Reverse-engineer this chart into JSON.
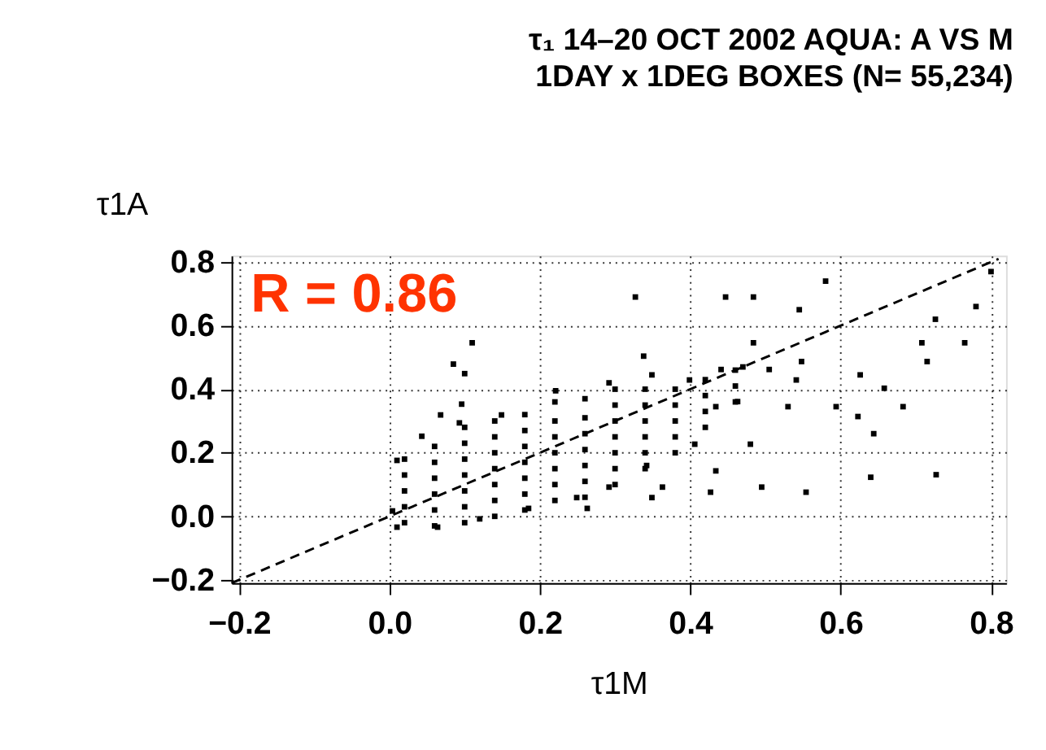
{
  "chart_data": {
    "type": "scatter",
    "title": "τ₁ 14–20 OCT 2002 AQUA: A VS M",
    "subtitle": "1DAY x 1DEG BOXES (N= 55,234)",
    "xlabel": "τ1M",
    "ylabel": "τ1A",
    "xlim": [
      -0.21,
      0.82
    ],
    "ylim": [
      -0.21,
      0.82
    ],
    "xticks": [
      -0.2,
      {
        "value": 0,
        "label": "0.0"
      },
      0.2,
      0.4,
      0.6,
      0.8
    ],
    "yticks": [
      -0.2,
      {
        "value": 0,
        "label": "0.0"
      },
      0.2,
      0.4,
      0.6,
      0.8
    ],
    "grid": true,
    "annotations": [
      "R = 0.86"
    ],
    "series": [
      {
        "color": "#000000",
        "marker": "square",
        "x": [
          0.02,
          0.02,
          0.02,
          0.02,
          0.02,
          0.06,
          0.06,
          0.06,
          0.06,
          0.06,
          0.06,
          0.1,
          0.1,
          0.1,
          0.1,
          0.1,
          0.1,
          0.1,
          0.14,
          0.14,
          0.14,
          0.14,
          0.14,
          0.14,
          0.14,
          0.18,
          0.18,
          0.18,
          0.18,
          0.18,
          0.18,
          0.18,
          0.22,
          0.22,
          0.22,
          0.22,
          0.22,
          0.22,
          0.22,
          0.26,
          0.26,
          0.26,
          0.26,
          0.26,
          0.26,
          0.26,
          0.3,
          0.3,
          0.3,
          0.3,
          0.3,
          0.3,
          0.3,
          0.34,
          0.34,
          0.34,
          0.34,
          0.34,
          0.34,
          0.38,
          0.38,
          0.38,
          0.38,
          0.38,
          0.42,
          0.42,
          0.42,
          0.42,
          0.46,
          0.46,
          0.46,
          0.004,
          0.01,
          0.064,
          0.12,
          0.185,
          0.249,
          0.263,
          0.292,
          0.342,
          0.406,
          0.01,
          0.043,
          0.093,
          0.149,
          0.221,
          0.292,
          0.349,
          0.399,
          0.441,
          0.47,
          0.434,
          0.327,
          0.447,
          0.484,
          0.545,
          0.58,
          0.78,
          0.8,
          0.726,
          0.708,
          0.765,
          0.715,
          0.594,
          0.623,
          0.644,
          0.64,
          0.727,
          0.554,
          0.495,
          0.427,
          0.434,
          0.48,
          0.085,
          0.1,
          0.11,
          0.068,
          0.096,
          0.338,
          0.484,
          0.541,
          0.53,
          0.683,
          0.658,
          0.626,
          0.548,
          0.505,
          0.349,
          0.363,
          0.463
        ],
        "values": [
          -0.02,
          0.03,
          0.08,
          0.13,
          0.18,
          -0.03,
          0.02,
          0.07,
          0.12,
          0.17,
          0.22,
          -0.02,
          0.03,
          0.08,
          0.13,
          0.18,
          0.23,
          0.28,
          0.0,
          0.05,
          0.1,
          0.15,
          0.2,
          0.25,
          0.3,
          0.02,
          0.07,
          0.12,
          0.17,
          0.22,
          0.27,
          0.32,
          0.05,
          0.1,
          0.15,
          0.2,
          0.25,
          0.3,
          0.36,
          0.06,
          0.11,
          0.16,
          0.21,
          0.26,
          0.31,
          0.37,
          0.1,
          0.15,
          0.2,
          0.25,
          0.3,
          0.35,
          0.4,
          0.15,
          0.2,
          0.25,
          0.3,
          0.35,
          0.4,
          0.2,
          0.25,
          0.3,
          0.35,
          0.4,
          0.28,
          0.33,
          0.38,
          0.43,
          0.36,
          0.41,
          0.46,
          0.017,
          -0.034,
          -0.034,
          -0.008,
          0.025,
          0.059,
          0.025,
          0.092,
          0.16,
          0.227,
          0.176,
          0.252,
          0.294,
          0.319,
          0.395,
          0.42,
          0.445,
          0.429,
          0.462,
          0.47,
          0.345,
          0.69,
          0.69,
          0.69,
          0.65,
          0.74,
          0.66,
          0.77,
          0.62,
          0.546,
          0.546,
          0.487,
          0.345,
          0.314,
          0.26,
          0.123,
          0.131,
          0.076,
          0.092,
          0.076,
          0.143,
          0.227,
          0.479,
          0.449,
          0.546,
          0.319,
          0.353,
          0.504,
          0.546,
          0.429,
          0.345,
          0.345,
          0.403,
          0.445,
          0.487,
          0.462,
          0.059,
          0.092,
          0.361
        ]
      },
      {
        "type": "line",
        "color": "#000000",
        "line_style": "dashed",
        "marker": "none",
        "x": [
          -0.21,
          0.81
        ],
        "values": [
          -0.21,
          0.81
        ]
      }
    ]
  }
}
